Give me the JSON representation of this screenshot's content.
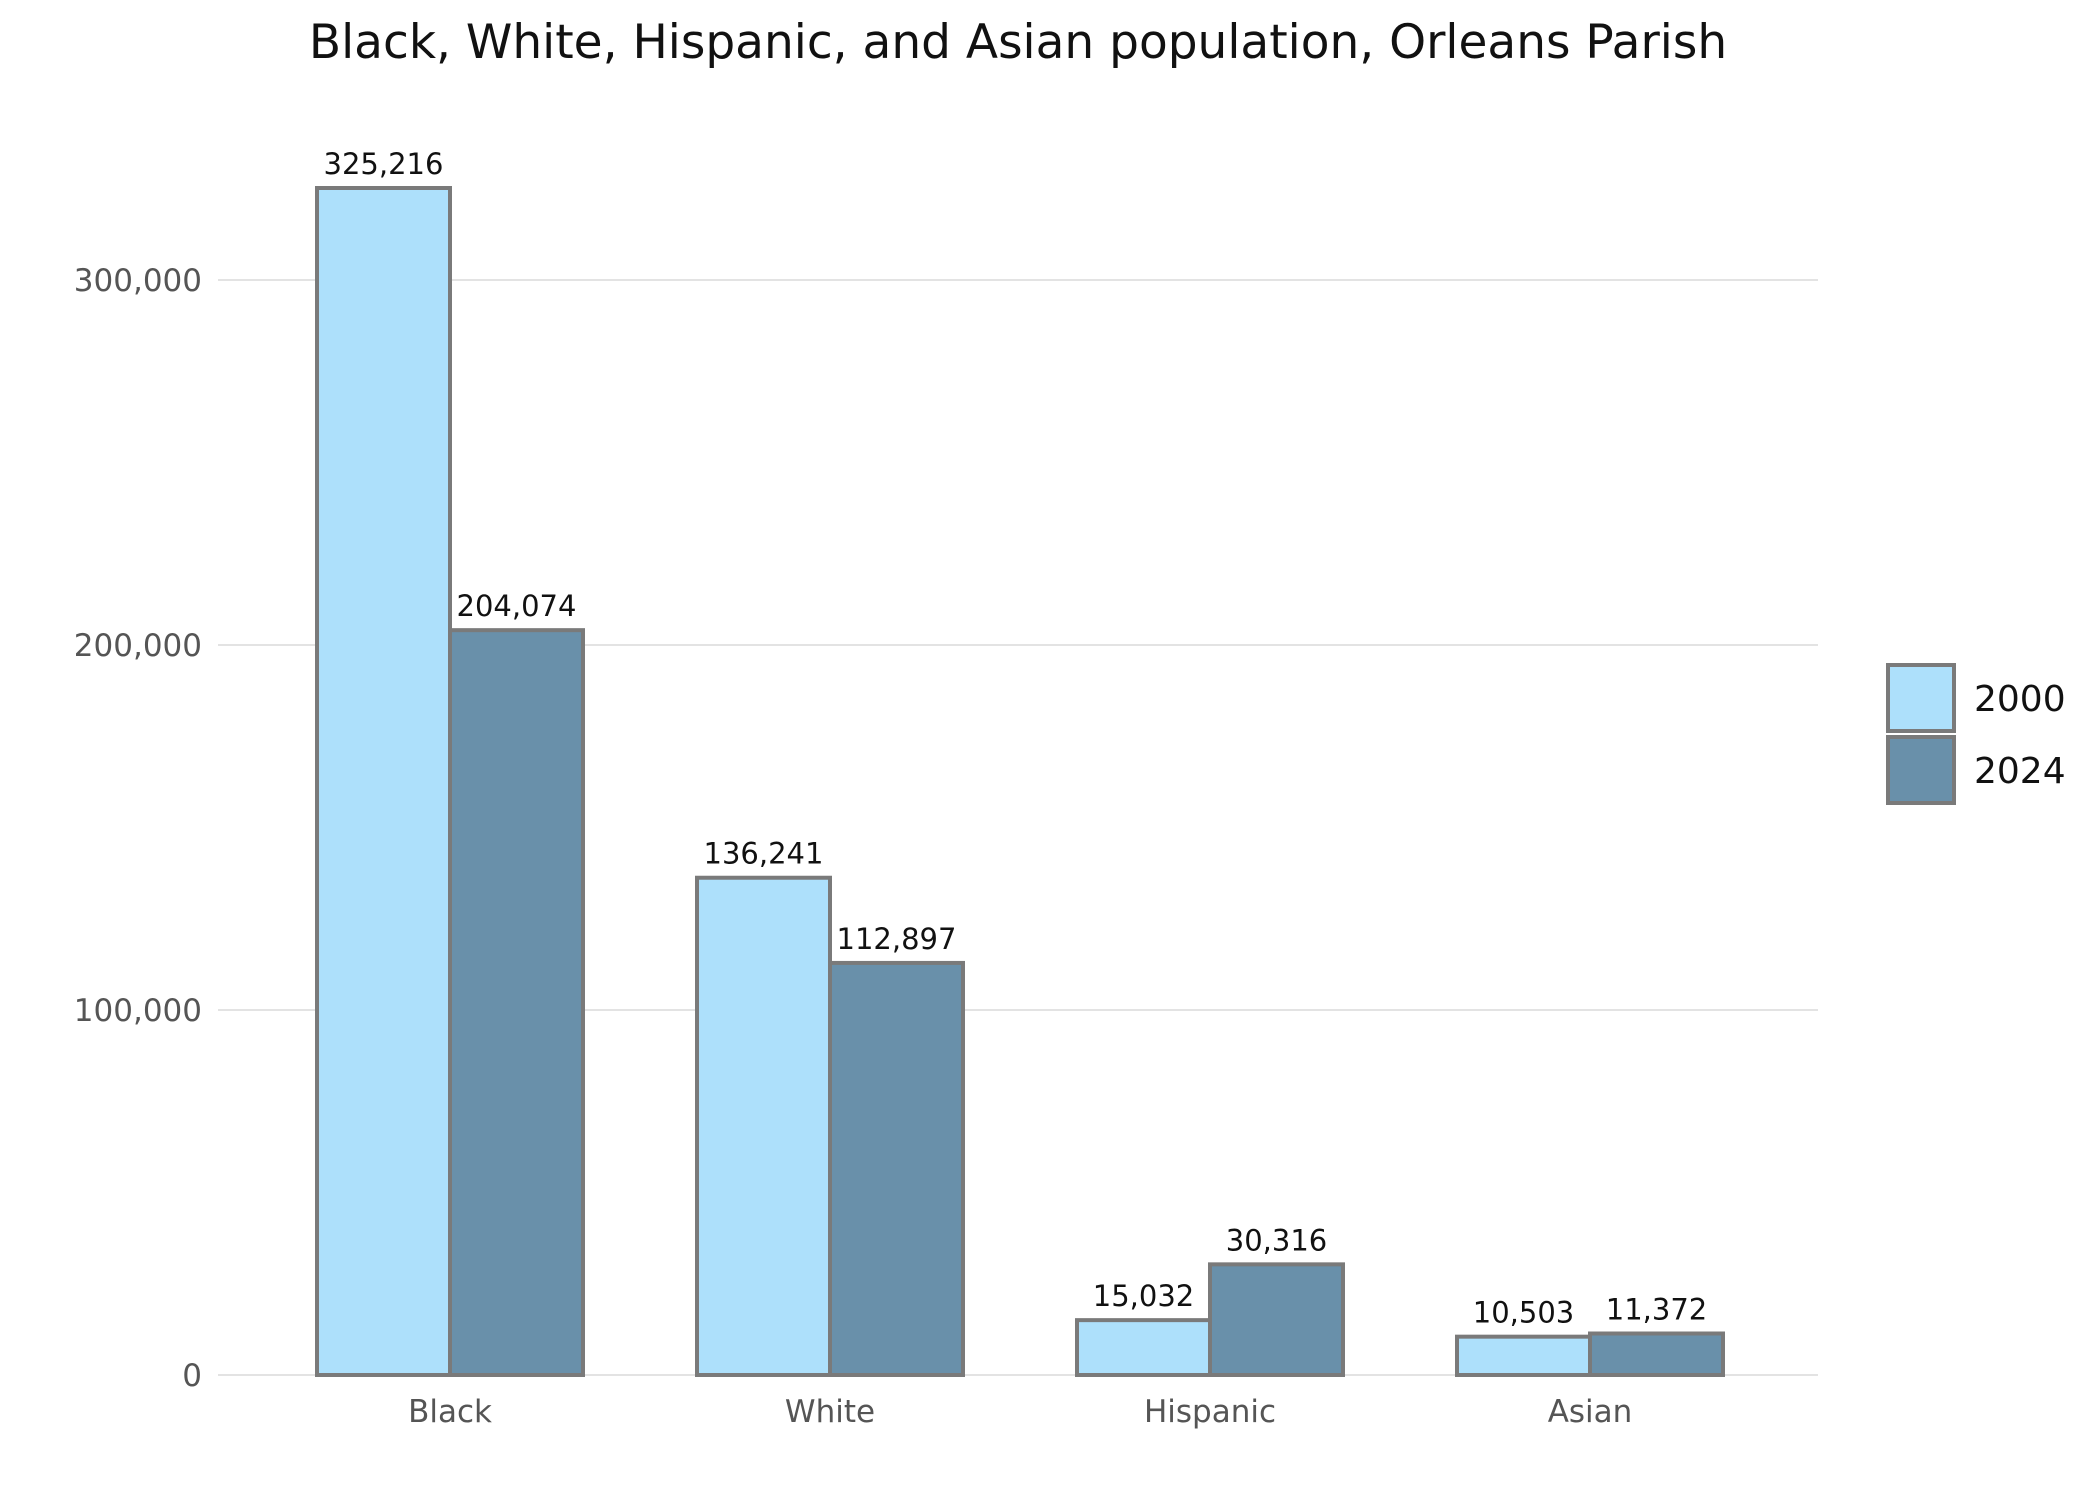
{
  "chart_data": {
    "type": "bar",
    "title": "Black, White, Hispanic, and Asian population, Orleans Parish",
    "xlabel": "",
    "ylabel": "",
    "categories": [
      "Black",
      "White",
      "Hispanic",
      "Asian"
    ],
    "series": [
      {
        "name": "2000",
        "color": "#ade0fb",
        "values": [
          325216,
          136241,
          15032,
          10503
        ],
        "labels": [
          "325,216",
          "136,241",
          "15,032",
          "10,503"
        ]
      },
      {
        "name": "2024",
        "color": "#6990aa",
        "values": [
          204074,
          112897,
          30316,
          11372
        ],
        "labels": [
          "204,074",
          "112,897",
          "30,316",
          "11,372"
        ]
      }
    ],
    "yticks": [
      0,
      100000,
      200000,
      300000
    ],
    "ytick_labels": [
      "0",
      "100,000",
      "200,000",
      "300,000"
    ],
    "ylim": [
      0,
      325216
    ],
    "grid": true,
    "legend_position": "right",
    "bar_outline_color": "#7a7a7a"
  }
}
